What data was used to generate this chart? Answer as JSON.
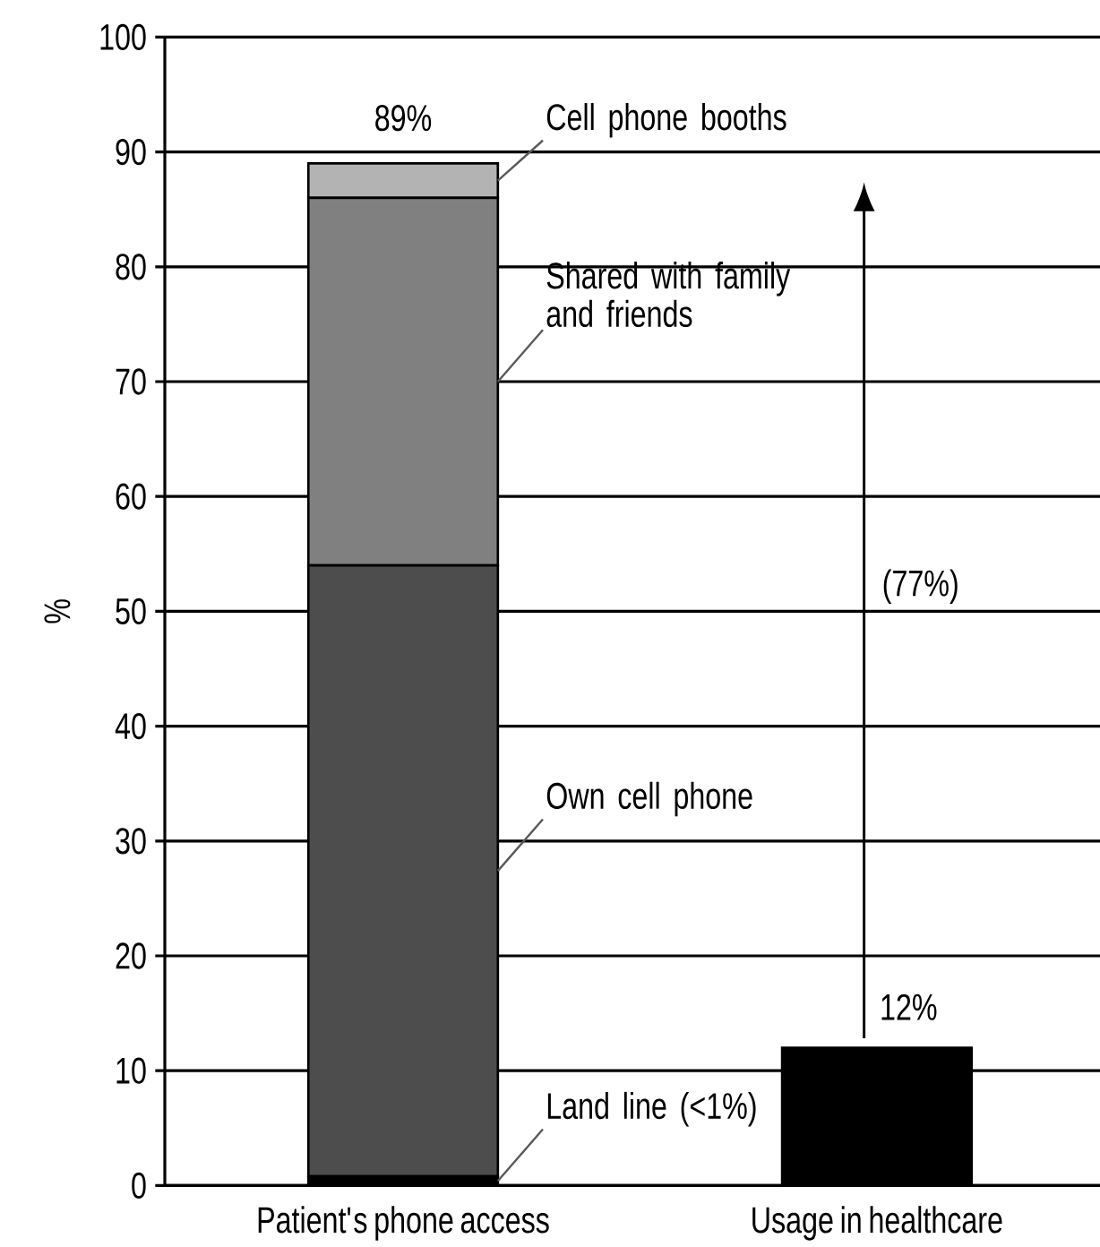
{
  "chart_data": {
    "type": "bar",
    "stacked": true,
    "categories": [
      "Patient's phone access",
      "Usage in healthcare"
    ],
    "series": [
      {
        "name": "Land line (<1%)",
        "color": "#000000",
        "values": [
          0.8,
          null
        ]
      },
      {
        "name": "Own cell phone",
        "color": "#4d4d4d",
        "values": [
          53.2,
          null
        ]
      },
      {
        "name": "Shared with family and friends",
        "color": "#808080",
        "values": [
          32,
          null
        ]
      },
      {
        "name": "Cell phone booths",
        "color": "#b3b3b3",
        "values": [
          3,
          null
        ]
      },
      {
        "color": "#000000",
        "values": [
          null,
          12
        ]
      }
    ],
    "totals": [
      "89%",
      "12%"
    ],
    "ylabel": "%",
    "ylim": [
      0,
      100
    ],
    "yticks": [
      0,
      10,
      20,
      30,
      40,
      50,
      60,
      70,
      80,
      90,
      100
    ],
    "grid": "y",
    "annotations": [
      "(77%)"
    ]
  }
}
